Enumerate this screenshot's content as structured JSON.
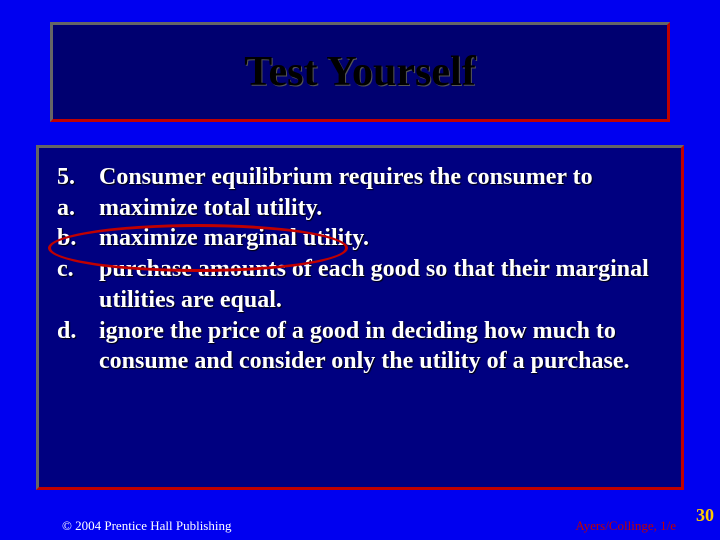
{
  "title": "Test Yourself",
  "question": {
    "number": "5.",
    "text": "Consumer equilibrium requires the consumer to"
  },
  "options": [
    {
      "marker": "a.",
      "text": "maximize total utility.",
      "circled": true
    },
    {
      "marker": "b.",
      "text": "maximize marginal utility.",
      "circled": false
    },
    {
      "marker": "c.",
      "text": "purchase amounts of each good so that their marginal utilities are equal.",
      "circled": false
    },
    {
      "marker": "d.",
      "text": "ignore the price of a good in deciding how much to consume and consider only the utility of a purchase.",
      "circled": false
    }
  ],
  "footer": {
    "left": "© 2004 Prentice Hall Publishing",
    "right": "Ayers/Collinge, 1/e",
    "slide_number": "30"
  },
  "colors": {
    "slide_bg": "#0000f0",
    "panel_bg": "#000080",
    "border_light": "#666666",
    "border_dark": "#c00000",
    "text_white": "#ffffff",
    "title_black": "#000000",
    "circle": "#c00000",
    "slide_num": "#ffcc00"
  }
}
